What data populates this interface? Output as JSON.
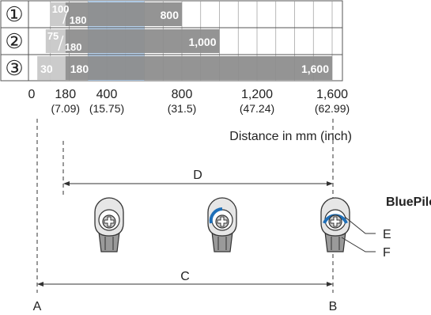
{
  "rows": [
    {
      "label": "①",
      "min_label": "100",
      "min_sub": "180",
      "max_label": "800",
      "start_mm": 100,
      "mid_mm": 180,
      "max_mm": 800
    },
    {
      "label": "②",
      "min_label": "75",
      "min_sub": "180",
      "max_label": "1,000",
      "start_mm": 75,
      "mid_mm": 180,
      "max_mm": 1000
    },
    {
      "label": "③",
      "min_label": "30",
      "min_sub": "180",
      "max_label": "1,600",
      "start_mm": 30,
      "mid_mm": 180,
      "max_mm": 1600
    }
  ],
  "highlight_range_mm": [
    300,
    600
  ],
  "axis": {
    "ticks": [
      {
        "mm": 0,
        "main": "0",
        "sub": ""
      },
      {
        "mm": 180,
        "main": "180",
        "sub": "(7.09)"
      },
      {
        "mm": 400,
        "main": "400",
        "sub": "(15.75)"
      },
      {
        "mm": 800,
        "main": "800",
        "sub": "(31.5)"
      },
      {
        "mm": 1200,
        "main": "1,200",
        "sub": "(47.24)"
      },
      {
        "mm": 1600,
        "main": "1,600",
        "sub": "(62.99)"
      }
    ],
    "title": "Distance in mm (inch)"
  },
  "markers": {
    "A": "A",
    "B": "B",
    "C": "C",
    "D": "D",
    "E": "E",
    "F": "F"
  },
  "bluepilot": "BluePilot",
  "colors": {
    "dark_bar": "#8c8c8c",
    "light_bar": "#c8c8c8",
    "highlight": "#a9c8e8",
    "blue_arc": "#1e6fb8",
    "grid": "#999999"
  }
}
